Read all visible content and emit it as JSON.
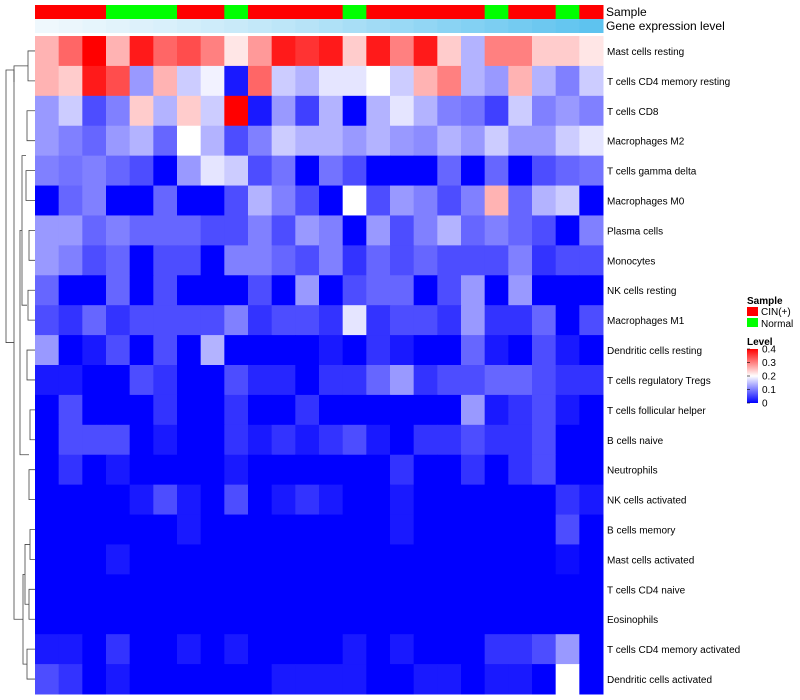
{
  "chart_data": {
    "type": "heatmap",
    "title": "",
    "annotation_tracks": [
      {
        "label": "Sample",
        "values": [
          "CIN(+)",
          "CIN(+)",
          "CIN(+)",
          "Normal",
          "Normal",
          "Normal",
          "CIN(+)",
          "CIN(+)",
          "Normal",
          "CIN(+)",
          "CIN(+)",
          "CIN(+)",
          "CIN(+)",
          "Normal",
          "CIN(+)",
          "CIN(+)",
          "CIN(+)",
          "CIN(+)",
          "CIN(+)",
          "Normal",
          "CIN(+)",
          "CIN(+)",
          "Normal",
          "CIN(+)"
        ]
      },
      {
        "label": "Gene expression level",
        "values": [
          0.02,
          0.05,
          0.08,
          0.11,
          0.14,
          0.17,
          0.2,
          0.24,
          0.28,
          0.32,
          0.36,
          0.4,
          0.45,
          0.5,
          0.55,
          0.6,
          0.65,
          0.7,
          0.75,
          0.8,
          0.85,
          0.9,
          0.95,
          1.0
        ]
      }
    ],
    "rows": [
      "Mast cells resting",
      "T cells CD4 memory resting",
      "T cells CD8",
      "Macrophages M2",
      "T cells gamma delta",
      "Macrophages M0",
      "Plasma cells",
      "Monocytes",
      "NK cells resting",
      "Macrophages M1",
      "Dendritic cells resting",
      "T cells regulatory  Tregs",
      "T cells follicular helper",
      "B cells naive",
      "Neutrophils",
      "NK cells activated",
      "B cells memory",
      "Mast cells activated",
      "T cells CD4 naive",
      "Eosinophils",
      "T cells CD4 memory activated",
      "Dendritic cells activated"
    ],
    "values": [
      [
        0.26,
        0.32,
        0.4,
        0.26,
        0.38,
        0.32,
        0.34,
        0.3,
        0.22,
        0.28,
        0.38,
        0.36,
        0.38,
        0.24,
        0.38,
        0.3,
        0.38,
        0.24,
        0.14,
        0.3,
        0.3,
        0.24,
        0.24,
        0.22
      ],
      [
        0.26,
        0.24,
        0.38,
        0.34,
        0.12,
        0.26,
        0.16,
        0.19,
        0.02,
        0.32,
        0.16,
        0.14,
        0.18,
        0.18,
        0.2,
        0.16,
        0.26,
        0.3,
        0.14,
        0.12,
        0.26,
        0.14,
        0.1,
        0.16
      ],
      [
        0.12,
        0.16,
        0.06,
        0.1,
        0.24,
        0.14,
        0.24,
        0.16,
        0.4,
        0.02,
        0.12,
        0.05,
        0.14,
        0.0,
        0.14,
        0.18,
        0.14,
        0.1,
        0.09,
        0.05,
        0.16,
        0.1,
        0.12,
        0.1
      ],
      [
        0.12,
        0.1,
        0.08,
        0.12,
        0.14,
        0.08,
        0.2,
        0.14,
        0.06,
        0.1,
        0.16,
        0.14,
        0.14,
        0.12,
        0.14,
        0.12,
        0.11,
        0.14,
        0.12,
        0.16,
        0.12,
        0.12,
        0.16,
        0.18
      ],
      [
        0.1,
        0.09,
        0.1,
        0.08,
        0.06,
        0.0,
        0.12,
        0.18,
        0.16,
        0.06,
        0.09,
        0.0,
        0.09,
        0.06,
        0.0,
        0.0,
        0.0,
        0.08,
        0.0,
        0.08,
        0.0,
        0.06,
        0.08,
        0.09
      ],
      [
        0.0,
        0.08,
        0.1,
        0.0,
        0.0,
        0.08,
        0.0,
        0.0,
        0.06,
        0.14,
        0.1,
        0.06,
        0.0,
        0.2,
        0.06,
        0.12,
        0.1,
        0.06,
        0.1,
        0.26,
        0.08,
        0.14,
        0.16,
        0.0
      ],
      [
        0.12,
        0.12,
        0.08,
        0.1,
        0.08,
        0.08,
        0.08,
        0.06,
        0.06,
        0.1,
        0.06,
        0.12,
        0.1,
        0.0,
        0.12,
        0.06,
        0.1,
        0.14,
        0.08,
        0.1,
        0.08,
        0.06,
        0.0,
        0.1
      ],
      [
        0.12,
        0.1,
        0.06,
        0.08,
        0.0,
        0.06,
        0.06,
        0.0,
        0.1,
        0.1,
        0.08,
        0.06,
        0.1,
        0.04,
        0.08,
        0.06,
        0.08,
        0.06,
        0.06,
        0.06,
        0.1,
        0.04,
        0.06,
        0.06
      ],
      [
        0.08,
        0.0,
        0.0,
        0.08,
        0.0,
        0.06,
        0.0,
        0.0,
        0.0,
        0.06,
        0.0,
        0.12,
        0.0,
        0.06,
        0.08,
        0.08,
        0.0,
        0.06,
        0.12,
        0.0,
        0.12,
        0.0,
        0.0,
        0.0
      ],
      [
        0.06,
        0.04,
        0.08,
        0.04,
        0.06,
        0.06,
        0.06,
        0.06,
        0.1,
        0.04,
        0.06,
        0.06,
        0.04,
        0.18,
        0.04,
        0.06,
        0.06,
        0.04,
        0.12,
        0.04,
        0.04,
        0.08,
        0.0,
        0.06
      ],
      [
        0.12,
        0.0,
        0.02,
        0.06,
        0.0,
        0.06,
        0.0,
        0.14,
        0.0,
        0.0,
        0.0,
        0.0,
        0.02,
        0.0,
        0.04,
        0.02,
        0.0,
        0.0,
        0.08,
        0.02,
        0.0,
        0.06,
        0.02,
        0.0
      ],
      [
        0.02,
        0.02,
        0.0,
        0.0,
        0.06,
        0.04,
        0.0,
        0.0,
        0.06,
        0.03,
        0.03,
        0.0,
        0.04,
        0.04,
        0.08,
        0.12,
        0.04,
        0.06,
        0.06,
        0.08,
        0.08,
        0.06,
        0.04,
        0.04
      ],
      [
        0.0,
        0.06,
        0.0,
        0.0,
        0.0,
        0.04,
        0.0,
        0.0,
        0.04,
        0.0,
        0.0,
        0.04,
        0.0,
        0.0,
        0.0,
        0.0,
        0.0,
        0.0,
        0.12,
        0.02,
        0.04,
        0.06,
        0.02,
        0.0
      ],
      [
        0.0,
        0.06,
        0.06,
        0.06,
        0.0,
        0.02,
        0.0,
        0.0,
        0.04,
        0.02,
        0.04,
        0.02,
        0.04,
        0.06,
        0.02,
        0.0,
        0.04,
        0.04,
        0.06,
        0.04,
        0.04,
        0.06,
        0.0,
        0.0
      ],
      [
        0.0,
        0.04,
        0.0,
        0.02,
        0.0,
        0.0,
        0.0,
        0.0,
        0.02,
        0.0,
        0.0,
        0.0,
        0.0,
        0.0,
        0.0,
        0.04,
        0.0,
        0.0,
        0.04,
        0.0,
        0.04,
        0.06,
        0.0,
        0.0
      ],
      [
        0.0,
        0.0,
        0.0,
        0.0,
        0.02,
        0.06,
        0.02,
        0.0,
        0.06,
        0.0,
        0.02,
        0.04,
        0.02,
        0.0,
        0.0,
        0.02,
        0.0,
        0.0,
        0.0,
        0.0,
        0.0,
        0.0,
        0.04,
        0.02
      ],
      [
        0.0,
        0.0,
        0.0,
        0.0,
        0.0,
        0.0,
        0.02,
        0.0,
        0.0,
        0.0,
        0.0,
        0.0,
        0.0,
        0.0,
        0.0,
        0.02,
        0.0,
        0.0,
        0.0,
        0.0,
        0.0,
        0.0,
        0.06,
        0.0
      ],
      [
        0.0,
        0.0,
        0.0,
        0.02,
        0.0,
        0.0,
        0.0,
        0.0,
        0.0,
        0.0,
        0.0,
        0.0,
        0.0,
        0.0,
        0.0,
        0.0,
        0.0,
        0.0,
        0.0,
        0.0,
        0.0,
        0.0,
        0.01,
        0.0
      ],
      [
        0.0,
        0.0,
        0.0,
        0.0,
        0.0,
        0.0,
        0.0,
        0.0,
        0.0,
        0.0,
        0.0,
        0.0,
        0.0,
        0.0,
        0.0,
        0.0,
        0.0,
        0.0,
        0.0,
        0.0,
        0.0,
        0.0,
        0.0,
        0.0
      ],
      [
        0.0,
        0.0,
        0.0,
        0.0,
        0.0,
        0.0,
        0.0,
        0.0,
        0.0,
        0.0,
        0.0,
        0.0,
        0.0,
        0.0,
        0.0,
        0.0,
        0.0,
        0.0,
        0.0,
        0.0,
        0.0,
        0.0,
        0.0,
        0.0
      ],
      [
        0.02,
        0.02,
        0.0,
        0.04,
        0.0,
        0.0,
        0.02,
        0.0,
        0.02,
        0.0,
        0.0,
        0.0,
        0.0,
        0.02,
        0.0,
        0.02,
        0.0,
        0.0,
        0.0,
        0.04,
        0.04,
        0.06,
        0.12,
        0.0
      ],
      [
        0.06,
        0.04,
        0.0,
        0.02,
        0.0,
        0.0,
        0.0,
        0.0,
        0.0,
        0.0,
        0.02,
        0.02,
        0.02,
        0.02,
        0.0,
        0.0,
        0.02,
        0.02,
        0.0,
        0.02,
        0.02,
        0.0,
        0.2,
        0.0
      ]
    ],
    "legend": {
      "sample_title": "Sample",
      "sample_entries": [
        {
          "label": "CIN(+)",
          "color": "#ff0000"
        },
        {
          "label": "Normal",
          "color": "#00ff00"
        }
      ],
      "level_title": "Level",
      "level_ticks": [
        "0.4",
        "0.3",
        "0.2",
        "0.1",
        "0"
      ],
      "level_min": 0,
      "level_max": 0.4
    },
    "colors": {
      "low": "#0000ff",
      "mid": "#ffffff",
      "high": "#ff0000",
      "expression_low": "#f2f9fd",
      "expression_high": "#5ec3ef"
    },
    "dendrogram": "rows"
  }
}
